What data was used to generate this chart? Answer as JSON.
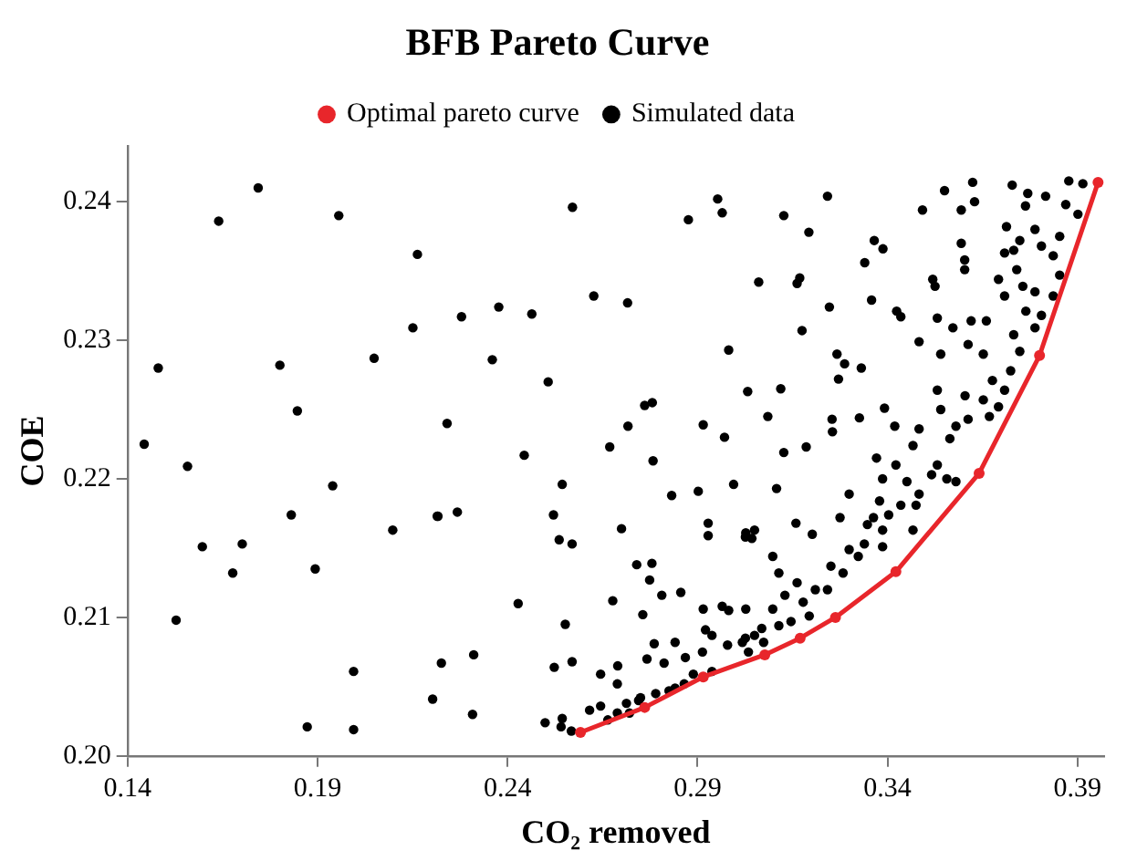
{
  "chart_data": {
    "type": "scatter",
    "title": "BFB Pareto Curve",
    "xlabel": "CO₂ removed",
    "ylabel": "COE",
    "xlim": [
      0.14,
      0.397
    ],
    "xticks": [
      0.14,
      0.19,
      0.24,
      0.29,
      0.34,
      0.39
    ],
    "ylim": [
      0.2,
      0.244
    ],
    "yticks": [
      {
        "value": 0.2,
        "label": "0.20"
      },
      0.21,
      0.22,
      0.23,
      0.24
    ],
    "grid": false,
    "legend": "top",
    "series": [
      {
        "name": "Optimal pareto curve",
        "type": "line",
        "marker": "circle",
        "line_style": "solid",
        "color": "#e8262b",
        "x": [
          0.2592,
          0.2761,
          0.2915,
          0.3077,
          0.317,
          0.3263,
          0.3422,
          0.3641,
          0.38,
          0.3954
        ],
        "values": [
          0.2017,
          0.2035,
          0.2057,
          0.2073,
          0.2085,
          0.21,
          0.2133,
          0.2204,
          0.2289,
          0.2414
        ]
      },
      {
        "name": "Simulated data",
        "type": "scatter",
        "marker": "circle",
        "color": "#000000",
        "x": [
          0.1744,
          0.164,
          0.1956,
          0.2163,
          0.1481,
          0.1801,
          0.2049,
          0.2151,
          0.1847,
          0.1444,
          0.1558,
          0.194,
          0.1831,
          0.2215,
          0.2098,
          0.1597,
          0.1702,
          0.1677,
          0.1894,
          0.1528,
          0.1995,
          0.2226,
          0.2203,
          0.1873,
          0.1995,
          0.2571,
          0.2953,
          0.2965,
          0.2876,
          0.3061,
          0.2279,
          0.2377,
          0.2464,
          0.2627,
          0.2716,
          0.236,
          0.2507,
          0.2982,
          0.3032,
          0.3085,
          0.2241,
          0.2444,
          0.2669,
          0.2717,
          0.2761,
          0.2781,
          0.2783,
          0.2915,
          0.2971,
          0.2995,
          0.2832,
          0.2902,
          0.2544,
          0.2217,
          0.2268,
          0.2521,
          0.2536,
          0.257,
          0.27,
          0.2928,
          0.2928,
          0.3027,
          0.3043,
          0.274,
          0.278,
          0.2774,
          0.2428,
          0.2677,
          0.2806,
          0.2856,
          0.2756,
          0.2552,
          0.2915,
          0.2965,
          0.2982,
          0.3027,
          0.2921,
          0.2938,
          0.2786,
          0.2841,
          0.2913,
          0.2868,
          0.2979,
          0.3026,
          0.3069,
          0.2311,
          0.2308,
          0.2523,
          0.257,
          0.269,
          0.2645,
          0.2767,
          0.2812,
          0.2689,
          0.275,
          0.279,
          0.2825,
          0.2841,
          0.2865,
          0.2889,
          0.2938,
          0.2499,
          0.2544,
          0.2568,
          0.2541,
          0.2616,
          0.2645,
          0.2664,
          0.2689,
          0.2713,
          0.2721,
          0.2745,
          0.3242,
          0.3127,
          0.3193,
          0.3169,
          0.3162,
          0.334,
          0.3247,
          0.3358,
          0.3175,
          0.3424,
          0.3435,
          0.355,
          0.3624,
          0.3629,
          0.3594,
          0.3492,
          0.3728,
          0.3769,
          0.3763,
          0.3816,
          0.3877,
          0.3914,
          0.3869,
          0.3901,
          0.3365,
          0.3388,
          0.3594,
          0.3603,
          0.3603,
          0.3519,
          0.3525,
          0.3713,
          0.3748,
          0.3732,
          0.3708,
          0.3788,
          0.3805,
          0.3836,
          0.3853,
          0.3692,
          0.374,
          0.3756,
          0.3708,
          0.3788,
          0.3836,
          0.3853,
          0.3764,
          0.3805,
          0.3788,
          0.3732,
          0.3748,
          0.3531,
          0.3572,
          0.362,
          0.366,
          0.3483,
          0.354,
          0.3612,
          0.3652,
          0.3267,
          0.3287,
          0.3271,
          0.3331,
          0.3119,
          0.3254,
          0.3255,
          0.3326,
          0.3392,
          0.3127,
          0.3186,
          0.3108,
          0.3419,
          0.3483,
          0.3467,
          0.3531,
          0.354,
          0.358,
          0.3564,
          0.3604,
          0.3612,
          0.3652,
          0.3676,
          0.3708,
          0.3692,
          0.3668,
          0.3724,
          0.3371,
          0.3422,
          0.3387,
          0.3451,
          0.3516,
          0.3531,
          0.3556,
          0.358,
          0.3483,
          0.3435,
          0.3475,
          0.3299,
          0.3379,
          0.3275,
          0.3347,
          0.3403,
          0.3387,
          0.3339,
          0.3299,
          0.3251,
          0.3283,
          0.3323,
          0.3387,
          0.3467,
          0.3363,
          0.3159,
          0.3202,
          0.305,
          0.3026,
          0.3098,
          0.3114,
          0.3162,
          0.321,
          0.313,
          0.3178,
          0.3098,
          0.3194,
          0.3242,
          0.305,
          0.3114,
          0.3146,
          0.3018,
          0.3074,
          0.3034
        ],
        "values": [
          0.241,
          0.2386,
          0.239,
          0.2362,
          0.228,
          0.2282,
          0.2287,
          0.2309,
          0.2249,
          0.2225,
          0.2209,
          0.2195,
          0.2174,
          0.2173,
          0.2163,
          0.2151,
          0.2153,
          0.2132,
          0.2135,
          0.2098,
          0.2061,
          0.2067,
          0.2041,
          0.2021,
          0.2019,
          0.2396,
          0.2402,
          0.2392,
          0.2387,
          0.2342,
          0.2317,
          0.2324,
          0.2319,
          0.2332,
          0.2327,
          0.2286,
          0.227,
          0.2293,
          0.2263,
          0.2245,
          0.224,
          0.2217,
          0.2223,
          0.2238,
          0.2253,
          0.2255,
          0.2213,
          0.2239,
          0.223,
          0.2196,
          0.2188,
          0.2191,
          0.2196,
          0.2173,
          0.2176,
          0.2174,
          0.2156,
          0.2153,
          0.2164,
          0.2168,
          0.2159,
          0.2161,
          0.2157,
          0.2138,
          0.2139,
          0.2127,
          0.211,
          0.2112,
          0.2116,
          0.2118,
          0.2102,
          0.2095,
          0.2106,
          0.2108,
          0.2105,
          0.2106,
          0.2091,
          0.2087,
          0.2081,
          0.2082,
          0.2075,
          0.2071,
          0.208,
          0.2085,
          0.2092,
          0.2073,
          0.203,
          0.2064,
          0.2068,
          0.2065,
          0.2059,
          0.207,
          0.2067,
          0.2052,
          0.2042,
          0.2045,
          0.2047,
          0.2049,
          0.2052,
          0.2059,
          0.2061,
          0.2024,
          0.2027,
          0.2018,
          0.2021,
          0.2033,
          0.2036,
          0.2026,
          0.2031,
          0.2038,
          0.2031,
          0.204,
          0.2404,
          0.239,
          0.2378,
          0.2345,
          0.2341,
          0.2356,
          0.2324,
          0.2329,
          0.2307,
          0.2321,
          0.2317,
          0.2408,
          0.2414,
          0.24,
          0.2394,
          0.2394,
          0.2412,
          0.2406,
          0.2397,
          0.2404,
          0.2415,
          0.2413,
          0.2398,
          0.2391,
          0.2372,
          0.2366,
          0.237,
          0.2358,
          0.2351,
          0.2344,
          0.2339,
          0.2382,
          0.2372,
          0.2365,
          0.2363,
          0.238,
          0.2368,
          0.2361,
          0.2375,
          0.2344,
          0.2351,
          0.2339,
          0.2332,
          0.2335,
          0.2332,
          0.2347,
          0.2321,
          0.2318,
          0.2309,
          0.2304,
          0.2292,
          0.2316,
          0.2309,
          0.2314,
          0.2314,
          0.2299,
          0.229,
          0.2297,
          0.229,
          0.229,
          0.2283,
          0.2272,
          0.228,
          0.2265,
          0.2243,
          0.2234,
          0.2244,
          0.2251,
          0.2219,
          0.2223,
          0.2193,
          0.2238,
          0.2236,
          0.2224,
          0.2264,
          0.225,
          0.2238,
          0.2229,
          0.226,
          0.2243,
          0.2257,
          0.2271,
          0.2264,
          0.2252,
          0.2245,
          0.2278,
          0.2215,
          0.221,
          0.22,
          0.2198,
          0.2203,
          0.221,
          0.22,
          0.2198,
          0.2189,
          0.2181,
          0.2181,
          0.2189,
          0.2184,
          0.2172,
          0.2167,
          0.2174,
          0.2163,
          0.2153,
          0.2149,
          0.2137,
          0.2132,
          0.2144,
          0.2151,
          0.2163,
          0.2172,
          0.2168,
          0.216,
          0.2163,
          0.2158,
          0.2144,
          0.2132,
          0.2125,
          0.212,
          0.2116,
          0.2111,
          0.2106,
          0.2101,
          0.212,
          0.2087,
          0.2094,
          0.2097,
          0.2082,
          0.2082,
          0.2075
        ]
      }
    ]
  }
}
